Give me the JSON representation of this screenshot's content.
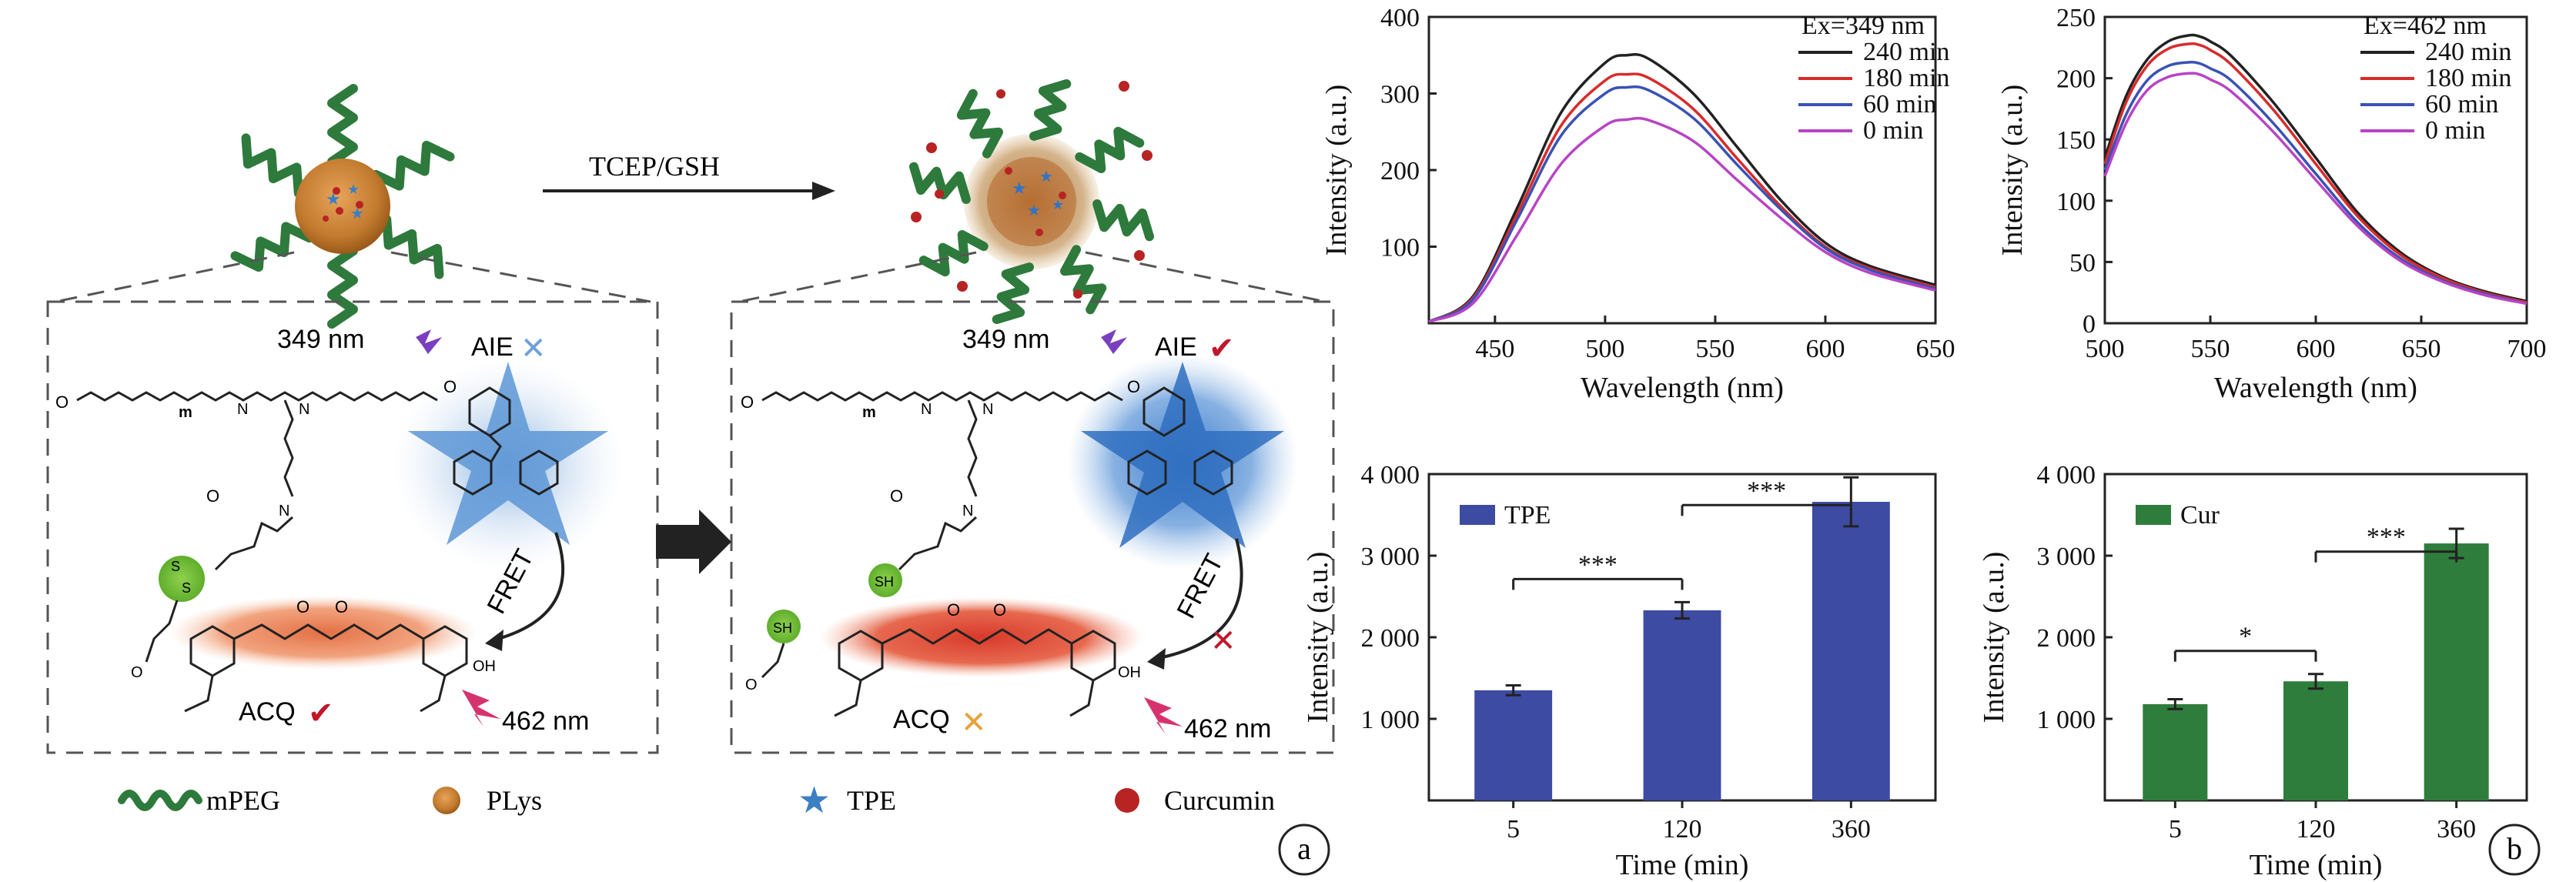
{
  "panel_a": {
    "label": "a",
    "arrow_label": "TCEP/GSH",
    "left_box": {
      "excitation": "349 nm",
      "aie": "AIE",
      "fret": "FRET",
      "acq": "ACQ",
      "emission": "462 nm",
      "mpeg_unit": "m"
    },
    "right_box": {
      "excitation": "349 nm",
      "aie": "AIE",
      "fret": "FRET",
      "acq": "ACQ",
      "emission": "462 nm",
      "sh": "SH",
      "mpeg_unit": "m"
    },
    "legend": [
      {
        "label": "mPEG",
        "icon": "wavy-chain-icon",
        "color": "#2e7a3c"
      },
      {
        "label": "PLys",
        "icon": "orange-sphere-icon",
        "color": "#c9771f"
      },
      {
        "label": "TPE",
        "icon": "blue-star-icon",
        "color": "#3b7fc4"
      },
      {
        "label": "Curcumin",
        "icon": "red-dot-icon",
        "color": "#b82323"
      }
    ],
    "colors": {
      "peg": "#2e7a3c",
      "core": "#c27a2e",
      "tpe": "#2f73c8",
      "cur": "#d8452a",
      "check": "#c0182a",
      "cross": "#e6a33a"
    }
  },
  "panel_b_label": "b",
  "chart_data": [
    {
      "type": "line",
      "annotation": "Ex=349 nm",
      "xlabel": "Wavelength (nm)",
      "ylabel": "Intensity (a.u.)",
      "xlim": [
        420,
        650
      ],
      "ylim": [
        0,
        400
      ],
      "xticks": [
        450,
        500,
        550,
        600,
        650
      ],
      "yticks": [
        100,
        200,
        300,
        400
      ],
      "legend_position": "top-right",
      "series": [
        {
          "name": "240 min",
          "color": "#222222",
          "x": [
            420,
            440,
            460,
            480,
            500,
            510,
            520,
            540,
            560,
            580,
            600,
            620,
            650
          ],
          "y": [
            2,
            35,
            150,
            275,
            340,
            350,
            345,
            300,
            230,
            160,
            105,
            75,
            50
          ]
        },
        {
          "name": "180 min",
          "color": "#d92b2b",
          "x": [
            420,
            440,
            460,
            480,
            500,
            510,
            520,
            540,
            560,
            580,
            600,
            620,
            650
          ],
          "y": [
            2,
            33,
            142,
            258,
            317,
            325,
            320,
            280,
            215,
            152,
            100,
            72,
            47
          ]
        },
        {
          "name": "60 min",
          "color": "#3a52b5",
          "x": [
            420,
            440,
            460,
            480,
            500,
            510,
            520,
            540,
            560,
            580,
            600,
            620,
            650
          ],
          "y": [
            2,
            31,
            135,
            245,
            300,
            308,
            304,
            268,
            207,
            148,
            98,
            70,
            45
          ]
        },
        {
          "name": "0 min",
          "color": "#b844c4",
          "x": [
            420,
            440,
            460,
            480,
            500,
            510,
            520,
            540,
            560,
            580,
            600,
            620,
            650
          ],
          "y": [
            2,
            26,
            115,
            208,
            258,
            266,
            265,
            238,
            187,
            137,
            93,
            66,
            43
          ]
        }
      ]
    },
    {
      "type": "line",
      "annotation": "Ex=462 nm",
      "xlabel": "Wavelength (nm)",
      "ylabel": "Intensity (a.u.)",
      "xlim": [
        500,
        700
      ],
      "ylim": [
        0,
        250
      ],
      "xticks": [
        500,
        550,
        600,
        650,
        700
      ],
      "yticks": [
        0,
        50,
        100,
        150,
        200,
        250
      ],
      "legend_position": "top-right",
      "series": [
        {
          "name": "240 min",
          "color": "#222222",
          "x": [
            500,
            510,
            520,
            530,
            540,
            545,
            550,
            560,
            580,
            600,
            620,
            640,
            660,
            680,
            700
          ],
          "y": [
            135,
            185,
            215,
            230,
            235,
            234,
            230,
            218,
            180,
            135,
            90,
            58,
            38,
            26,
            18
          ]
        },
        {
          "name": "180 min",
          "color": "#d92b2b",
          "x": [
            500,
            510,
            520,
            530,
            540,
            545,
            550,
            560,
            580,
            600,
            620,
            640,
            660,
            680,
            700
          ],
          "y": [
            130,
            180,
            210,
            224,
            228,
            227,
            223,
            211,
            174,
            130,
            87,
            56,
            37,
            25,
            17
          ]
        },
        {
          "name": "60 min",
          "color": "#3a52b5",
          "x": [
            500,
            510,
            520,
            530,
            540,
            545,
            550,
            560,
            580,
            600,
            620,
            640,
            660,
            680,
            700
          ],
          "y": [
            125,
            170,
            198,
            210,
            213,
            212,
            208,
            198,
            163,
            122,
            82,
            53,
            35,
            24,
            16
          ]
        },
        {
          "name": "0 min",
          "color": "#b844c4",
          "x": [
            500,
            510,
            520,
            530,
            540,
            545,
            550,
            560,
            580,
            600,
            620,
            640,
            660,
            680,
            700
          ],
          "y": [
            120,
            163,
            190,
            201,
            204,
            203,
            199,
            189,
            156,
            117,
            79,
            51,
            34,
            23,
            16
          ]
        }
      ]
    },
    {
      "type": "bar",
      "categories": [
        "5",
        "120",
        "360"
      ],
      "series": [
        {
          "name": "TPE",
          "color": "#3d4ba3",
          "values": [
            1350,
            2330,
            3660
          ],
          "errors": [
            60,
            100,
            300
          ]
        }
      ],
      "xlabel": "Time (min)",
      "ylabel": "Intensity (a.u.)",
      "ylim": [
        0,
        4000
      ],
      "yticks": [
        1000,
        2000,
        3000,
        4000
      ],
      "ytick_labels": [
        "1 000",
        "2 000",
        "3 000",
        "4 000"
      ],
      "significance": [
        {
          "from": 0,
          "to": 1,
          "label": "***"
        },
        {
          "from": 1,
          "to": 2,
          "label": "***"
        }
      ],
      "legend_position": "top-left"
    },
    {
      "type": "bar",
      "categories": [
        "5",
        "120",
        "360"
      ],
      "series": [
        {
          "name": "Cur",
          "color": "#2e7d3c",
          "values": [
            1180,
            1460,
            3150
          ],
          "errors": [
            60,
            90,
            180
          ]
        }
      ],
      "xlabel": "Time (min)",
      "ylabel": "Intensity (a.u.)",
      "ylim": [
        0,
        4000
      ],
      "yticks": [
        1000,
        2000,
        3000,
        4000
      ],
      "ytick_labels": [
        "1 000",
        "2 000",
        "3 000",
        "4 000"
      ],
      "significance": [
        {
          "from": 0,
          "to": 1,
          "label": "*"
        },
        {
          "from": 1,
          "to": 2,
          "label": "***"
        }
      ],
      "legend_position": "top-left"
    }
  ]
}
